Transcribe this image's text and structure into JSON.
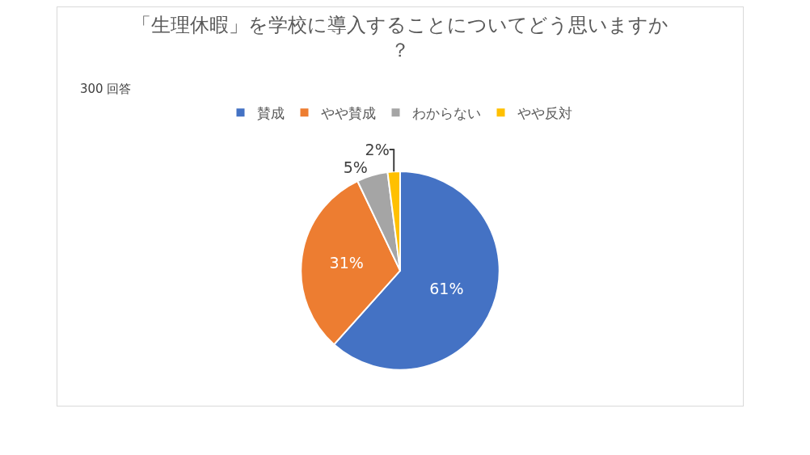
{
  "chart_data": {
    "type": "pie",
    "title": "「生理休暇」を学校に導入することについてどう思いますか？",
    "subtitle": "300 回答",
    "categories": [
      "賛成",
      "やや賛成",
      "わからない",
      "やや反対"
    ],
    "values": [
      61,
      31,
      5,
      2
    ],
    "colors": [
      "#4472c4",
      "#ed7d31",
      "#a5a5a5",
      "#ffc000"
    ],
    "value_labels": [
      "61%",
      "31%",
      "5%",
      "2%"
    ],
    "legend": "top"
  }
}
